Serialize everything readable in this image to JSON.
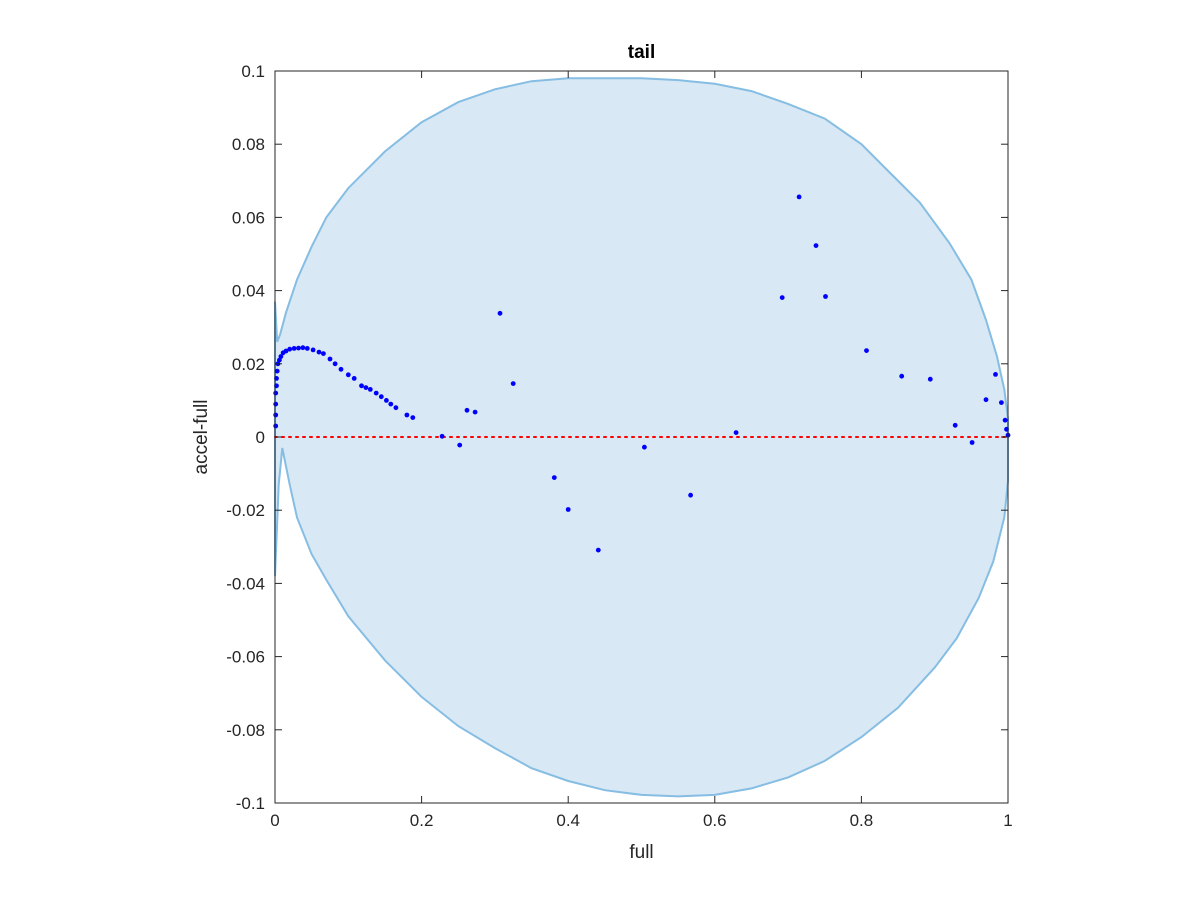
{
  "chart_data": {
    "type": "scatter",
    "title": "tail",
    "xlabel": "full",
    "ylabel": "accel-full",
    "xlim": [
      0,
      1
    ],
    "ylim": [
      -0.1,
      0.1
    ],
    "x_ticks": [
      0,
      0.2,
      0.4,
      0.6,
      0.8,
      1
    ],
    "x_tick_labels": [
      "0",
      "0.2",
      "0.4",
      "0.6",
      "0.8",
      "1"
    ],
    "y_ticks": [
      -0.1,
      -0.08,
      -0.06,
      -0.04,
      -0.02,
      0,
      0.02,
      0.04,
      0.06,
      0.08,
      0.1
    ],
    "y_tick_labels": [
      "-0.1",
      "-0.08",
      "-0.06",
      "-0.04",
      "-0.02",
      "0",
      "0.02",
      "0.04",
      "0.06",
      "0.08",
      "0.1"
    ],
    "grid": false,
    "colors": {
      "points": "#0000ff",
      "region_fill": "#d8e8f4",
      "region_edge": "#86bde3",
      "zero_line": "#ff0000",
      "axes": "#262626"
    },
    "reference_line": {
      "y": 0,
      "style": "dotted"
    },
    "region_boundary": [
      [
        0.0,
        -0.038
      ],
      [
        0.005,
        -0.013
      ],
      [
        0.01,
        -0.003
      ],
      [
        0.02,
        -0.013
      ],
      [
        0.03,
        -0.022
      ],
      [
        0.05,
        -0.032
      ],
      [
        0.07,
        -0.039
      ],
      [
        0.1,
        -0.049
      ],
      [
        0.15,
        -0.061
      ],
      [
        0.2,
        -0.071
      ],
      [
        0.25,
        -0.079
      ],
      [
        0.3,
        -0.085
      ],
      [
        0.35,
        -0.0905
      ],
      [
        0.4,
        -0.094
      ],
      [
        0.45,
        -0.0965
      ],
      [
        0.5,
        -0.0978
      ],
      [
        0.55,
        -0.0982
      ],
      [
        0.6,
        -0.0978
      ],
      [
        0.65,
        -0.096
      ],
      [
        0.7,
        -0.093
      ],
      [
        0.75,
        -0.0885
      ],
      [
        0.8,
        -0.082
      ],
      [
        0.85,
        -0.074
      ],
      [
        0.9,
        -0.063
      ],
      [
        0.93,
        -0.055
      ],
      [
        0.96,
        -0.044
      ],
      [
        0.98,
        -0.034
      ],
      [
        0.995,
        -0.022
      ],
      [
        1.0,
        -0.012
      ],
      [
        1.0,
        0.0
      ],
      [
        1.0,
        0.005
      ],
      [
        0.995,
        0.013
      ],
      [
        0.985,
        0.022
      ],
      [
        0.97,
        0.032
      ],
      [
        0.95,
        0.043
      ],
      [
        0.92,
        0.053
      ],
      [
        0.88,
        0.064
      ],
      [
        0.84,
        0.072
      ],
      [
        0.8,
        0.08
      ],
      [
        0.75,
        0.087
      ],
      [
        0.7,
        0.091
      ],
      [
        0.65,
        0.0945
      ],
      [
        0.6,
        0.0965
      ],
      [
        0.55,
        0.0975
      ],
      [
        0.5,
        0.098
      ],
      [
        0.45,
        0.098
      ],
      [
        0.4,
        0.098
      ],
      [
        0.35,
        0.0972
      ],
      [
        0.3,
        0.095
      ],
      [
        0.25,
        0.0915
      ],
      [
        0.2,
        0.086
      ],
      [
        0.15,
        0.078
      ],
      [
        0.1,
        0.068
      ],
      [
        0.07,
        0.06
      ],
      [
        0.05,
        0.052
      ],
      [
        0.03,
        0.043
      ],
      [
        0.015,
        0.034
      ],
      [
        0.007,
        0.028
      ],
      [
        0.003,
        0.026
      ],
      [
        0.0,
        0.037
      ]
    ],
    "points": [
      [
        0.001,
        0.003
      ],
      [
        0.001,
        0.006
      ],
      [
        0.001,
        0.009
      ],
      [
        0.001,
        0.012
      ],
      [
        0.002,
        0.014
      ],
      [
        0.002,
        0.016
      ],
      [
        0.003,
        0.018
      ],
      [
        0.004,
        0.02
      ],
      [
        0.006,
        0.021
      ],
      [
        0.008,
        0.022
      ],
      [
        0.011,
        0.023
      ],
      [
        0.015,
        0.0235
      ],
      [
        0.02,
        0.024
      ],
      [
        0.026,
        0.0242
      ],
      [
        0.032,
        0.0243
      ],
      [
        0.038,
        0.0244
      ],
      [
        0.044,
        0.0242
      ],
      [
        0.052,
        0.0238
      ],
      [
        0.06,
        0.0232
      ],
      [
        0.066,
        0.0228
      ],
      [
        0.075,
        0.0213
      ],
      [
        0.082,
        0.02
      ],
      [
        0.09,
        0.0185
      ],
      [
        0.1,
        0.017
      ],
      [
        0.108,
        0.016
      ],
      [
        0.118,
        0.014
      ],
      [
        0.124,
        0.0135
      ],
      [
        0.13,
        0.013
      ],
      [
        0.138,
        0.012
      ],
      [
        0.145,
        0.011
      ],
      [
        0.152,
        0.01
      ],
      [
        0.158,
        0.009
      ],
      [
        0.165,
        0.008
      ],
      [
        0.18,
        0.006
      ],
      [
        0.188,
        0.0053
      ],
      [
        0.228,
        0.0002
      ],
      [
        0.252,
        -0.0022
      ],
      [
        0.262,
        0.0073
      ],
      [
        0.273,
        0.0068
      ],
      [
        0.307,
        0.0338
      ],
      [
        0.325,
        0.0146
      ],
      [
        0.381,
        -0.0111
      ],
      [
        0.4,
        -0.0198
      ],
      [
        0.441,
        -0.0309
      ],
      [
        0.504,
        -0.0028
      ],
      [
        0.567,
        -0.0159
      ],
      [
        0.629,
        0.0012
      ],
      [
        0.692,
        0.0381
      ],
      [
        0.715,
        0.0656
      ],
      [
        0.738,
        0.0523
      ],
      [
        0.751,
        0.0384
      ],
      [
        0.807,
        0.0236
      ],
      [
        0.855,
        0.0166
      ],
      [
        0.894,
        0.0158
      ],
      [
        0.928,
        0.0032
      ],
      [
        0.951,
        -0.0015
      ],
      [
        0.97,
        0.0102
      ],
      [
        0.983,
        0.0171
      ],
      [
        0.991,
        0.0094
      ],
      [
        0.996,
        0.0046
      ],
      [
        0.998,
        0.0021
      ],
      [
        1.0,
        0.0005
      ]
    ]
  }
}
